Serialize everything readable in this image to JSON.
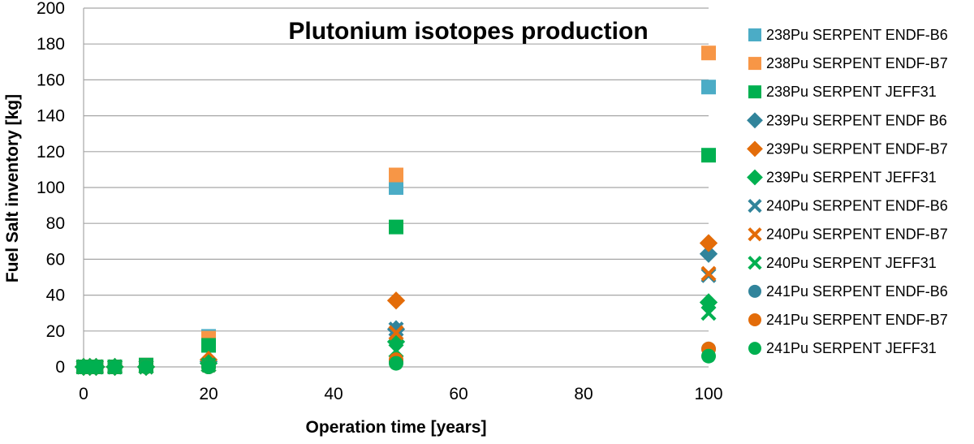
{
  "chart_data": {
    "type": "scatter",
    "title": "Plutonium isotopes production",
    "xlabel": "Operation time [years]",
    "ylabel": "Fuel Salt inventory [kg]",
    "xlim": [
      0,
      100
    ],
    "ylim": [
      0,
      200
    ],
    "x_ticks": [
      "0",
      "20",
      "40",
      "60",
      "80",
      "100"
    ],
    "y_ticks": [
      "0",
      "20",
      "40",
      "60",
      "80",
      "100",
      "120",
      "140",
      "160",
      "180",
      "200"
    ],
    "grid": "horizontal",
    "legend_position": "right",
    "series": [
      {
        "name": "238Pu SERPENT ENDF-B6",
        "marker": "square",
        "color": "#4BACC6",
        "points": [
          [
            0,
            0
          ],
          [
            1,
            0
          ],
          [
            2,
            0
          ],
          [
            5,
            0
          ],
          [
            10,
            1
          ],
          [
            20,
            17
          ],
          [
            50,
            100
          ],
          [
            100,
            156
          ]
        ]
      },
      {
        "name": "238Pu SERPENT ENDF-B7",
        "marker": "square",
        "color": "#F79646",
        "points": [
          [
            0,
            0
          ],
          [
            1,
            0
          ],
          [
            2,
            0
          ],
          [
            5,
            0
          ],
          [
            10,
            1
          ],
          [
            20,
            16
          ],
          [
            50,
            107
          ],
          [
            100,
            175
          ]
        ]
      },
      {
        "name": "238Pu SERPENT JEFF31",
        "marker": "square",
        "color": "#00B050",
        "points": [
          [
            0,
            0
          ],
          [
            1,
            0
          ],
          [
            2,
            0
          ],
          [
            5,
            0
          ],
          [
            10,
            1
          ],
          [
            20,
            12
          ],
          [
            50,
            78
          ],
          [
            100,
            118
          ]
        ]
      },
      {
        "name": "239Pu SERPENT ENDF B6",
        "marker": "diamond",
        "color": "#31849B",
        "points": [
          [
            0,
            0
          ],
          [
            1,
            0
          ],
          [
            2,
            0
          ],
          [
            5,
            0
          ],
          [
            10,
            0
          ],
          [
            20,
            3
          ],
          [
            50,
            21
          ],
          [
            100,
            63
          ]
        ]
      },
      {
        "name": "239Pu SERPENT ENDF-B7",
        "marker": "diamond",
        "color": "#E36C09",
        "points": [
          [
            0,
            0
          ],
          [
            1,
            0
          ],
          [
            2,
            0
          ],
          [
            5,
            0
          ],
          [
            10,
            0
          ],
          [
            20,
            4
          ],
          [
            50,
            37
          ],
          [
            100,
            69
          ]
        ]
      },
      {
        "name": "239Pu SERPENT JEFF31",
        "marker": "diamond",
        "color": "#00B050",
        "points": [
          [
            0,
            0
          ],
          [
            1,
            0
          ],
          [
            2,
            0
          ],
          [
            5,
            0
          ],
          [
            10,
            0
          ],
          [
            20,
            2
          ],
          [
            50,
            14
          ],
          [
            100,
            36
          ]
        ]
      },
      {
        "name": "240Pu SERPENT ENDF-B6",
        "marker": "x",
        "color": "#31849B",
        "points": [
          [
            0,
            0
          ],
          [
            1,
            0
          ],
          [
            2,
            0
          ],
          [
            5,
            0
          ],
          [
            10,
            0
          ],
          [
            20,
            1
          ],
          [
            50,
            21
          ],
          [
            100,
            51
          ]
        ]
      },
      {
        "name": "240Pu SERPENT ENDF-B7",
        "marker": "x",
        "color": "#E36C09",
        "points": [
          [
            0,
            0
          ],
          [
            1,
            0
          ],
          [
            2,
            0
          ],
          [
            5,
            0
          ],
          [
            10,
            0
          ],
          [
            20,
            1
          ],
          [
            50,
            19
          ],
          [
            100,
            52
          ]
        ]
      },
      {
        "name": "240Pu SERPENT JEFF31",
        "marker": "x",
        "color": "#00B050",
        "points": [
          [
            0,
            0
          ],
          [
            1,
            0
          ],
          [
            2,
            0
          ],
          [
            5,
            0
          ],
          [
            10,
            0
          ],
          [
            20,
            1
          ],
          [
            50,
            9
          ],
          [
            100,
            30
          ]
        ]
      },
      {
        "name": "241Pu SERPENT ENDF-B6",
        "marker": "circle",
        "color": "#31849B",
        "points": [
          [
            0,
            0
          ],
          [
            1,
            0
          ],
          [
            2,
            0
          ],
          [
            5,
            0
          ],
          [
            10,
            0
          ],
          [
            20,
            0
          ],
          [
            50,
            3
          ],
          [
            100,
            10
          ]
        ]
      },
      {
        "name": "241Pu SERPENT ENDF-B7",
        "marker": "circle",
        "color": "#E36C09",
        "points": [
          [
            0,
            0
          ],
          [
            1,
            0
          ],
          [
            2,
            0
          ],
          [
            5,
            0
          ],
          [
            10,
            0
          ],
          [
            20,
            0
          ],
          [
            50,
            4
          ],
          [
            100,
            10
          ]
        ]
      },
      {
        "name": "241Pu SERPENT JEFF31",
        "marker": "circle",
        "color": "#00B050",
        "points": [
          [
            0,
            0
          ],
          [
            1,
            0
          ],
          [
            2,
            0
          ],
          [
            5,
            0
          ],
          [
            10,
            0
          ],
          [
            20,
            0
          ],
          [
            50,
            2
          ],
          [
            100,
            6
          ]
        ]
      }
    ]
  }
}
